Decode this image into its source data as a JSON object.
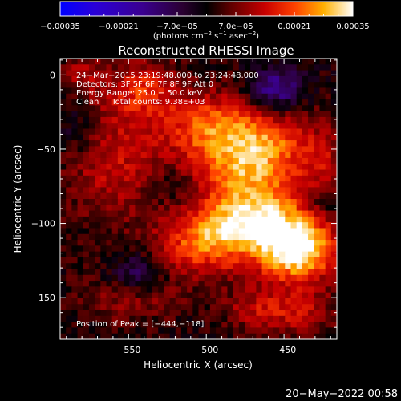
{
  "chart_data": {
    "type": "heatmap",
    "title": "Reconstructed RHESSI Image",
    "xlabel": "Heliocentric X (arcsec)",
    "ylabel": "Heliocentric Y (arcsec)",
    "xlim": [
      -594,
      -416
    ],
    "ylim": [
      -178,
      11
    ],
    "x_ticks": [
      -550,
      -500,
      -450
    ],
    "x_tick_labels": [
      "−550",
      "−500",
      "−450"
    ],
    "y_ticks": [
      0,
      -50,
      -100,
      -150
    ],
    "y_tick_labels": [
      "0",
      "−50",
      "−100",
      "−150"
    ],
    "colorbar": {
      "min": -0.00035,
      "max": 0.00035,
      "tick_labels": [
        "−0.00035",
        "−0.00021",
        "−7.0e−05",
        "7.0e−05",
        "0.00021",
        "0.00035"
      ],
      "unit_label_text": "(photons cm",
      "unit_label_sup1": "−2",
      "unit_label_mid": " s",
      "unit_label_sup2": "−1",
      "unit_label_mid2": " asec",
      "unit_label_sup3": "−2",
      "unit_label_end": ")"
    },
    "annotations": [
      "24−Mar−2015 23:19:48.000 to 23:24:48.000",
      "Detectors: 3F 5F 6F 7F 8F 9F Att 0",
      "Energy Range: 25.0 − 50.0 keV",
      "Clean     Total counts: 9.38E+03"
    ],
    "peak_label": "Position of Peak = [−444,−118]",
    "peak": [
      -444,
      -118
    ],
    "sources": [
      {
        "x": -498,
        "y": -36,
        "sx": 20,
        "sy": 17,
        "amp": 0.0002
      },
      {
        "x": -462,
        "y": -45,
        "sx": 20,
        "sy": 16,
        "amp": 0.0002
      },
      {
        "x": -475,
        "y": -68,
        "sx": 24,
        "sy": 14,
        "amp": 0.00017
      },
      {
        "x": -442,
        "y": -118,
        "sx": 18,
        "sy": 15,
        "amp": 0.00035
      },
      {
        "x": -468,
        "y": -96,
        "sx": 22,
        "sy": 14,
        "amp": 0.00026
      },
      {
        "x": -500,
        "y": -112,
        "sx": 22,
        "sy": 16,
        "amp": 0.00022
      },
      {
        "x": -560,
        "y": -55,
        "sx": 24,
        "sy": 30,
        "amp": 0.00013
      },
      {
        "x": -540,
        "y": -10,
        "sx": 16,
        "sy": 14,
        "amp": 0.00014
      },
      {
        "x": -580,
        "y": 0,
        "sx": 10,
        "sy": 12,
        "amp": 9e-05
      },
      {
        "x": -548,
        "y": -145,
        "sx": 22,
        "sy": 14,
        "amp": 0.00012
      },
      {
        "x": -440,
        "y": -160,
        "sx": 16,
        "sy": 12,
        "amp": 0.00012
      },
      {
        "x": -470,
        "y": -158,
        "sx": 14,
        "sy": 10,
        "amp": 0.0001
      },
      {
        "x": -425,
        "y": -60,
        "sx": 10,
        "sy": 20,
        "amp": 0.0001
      },
      {
        "x": -455,
        "y": -10,
        "sx": 12,
        "sy": 10,
        "amp": -0.00018
      },
      {
        "x": -583,
        "y": -35,
        "sx": 12,
        "sy": 16,
        "amp": -8e-05
      },
      {
        "x": -545,
        "y": -135,
        "sx": 14,
        "sy": 10,
        "amp": -0.00018
      },
      {
        "x": -520,
        "y": -75,
        "sx": 12,
        "sy": 10,
        "amp": -6e-05
      },
      {
        "x": -425,
        "y": -85,
        "sx": 8,
        "sy": 8,
        "amp": -8e-05
      }
    ],
    "background": 1e-05,
    "noise": 4e-05
  },
  "footer": {
    "timestamp": "20−May−2022 00:58"
  },
  "colors": {
    "background": "#000000",
    "text": "#ffffff"
  }
}
